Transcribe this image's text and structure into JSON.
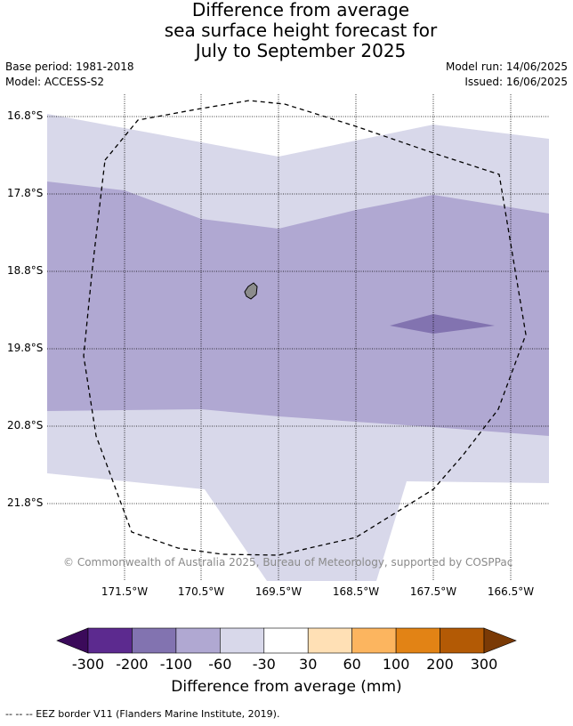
{
  "title": {
    "line1": "Difference from average",
    "line2": "sea surface height forecast for",
    "line3": "July to September 2025"
  },
  "meta": {
    "base_period": "Base period: 1981-2018",
    "model": "Model: ACCESS-S2",
    "model_run": "Model run: 14/06/2025",
    "issued": "Issued: 16/06/2025"
  },
  "map": {
    "lat_labels": [
      "16.8°S",
      "17.8°S",
      "18.8°S",
      "19.8°S",
      "20.8°S",
      "21.8°S"
    ],
    "lon_labels": [
      "171.5°W",
      "170.5°W",
      "169.5°W",
      "168.5°W",
      "167.5°W",
      "166.5°W"
    ],
    "island": "Niue",
    "border_style": "dashed",
    "copyright": "© Commonwealth of Australia 2025, Bureau of Meteorology, supported by COSPPac"
  },
  "colorbar": {
    "tick_labels": [
      "-300",
      "-200",
      "-100",
      "-60",
      "-30",
      "30",
      "60",
      "100",
      "200",
      "300"
    ],
    "colors": [
      "#3b0a5a",
      "#5c2a8f",
      "#8273b0",
      "#b0a8d2",
      "#d8d8ea",
      "#ffffff",
      "#ffe0b5",
      "#fcb55f",
      "#e28315",
      "#b35a05",
      "#7a3a06"
    ],
    "label": "Difference from average (mm)"
  },
  "footer": "-- -- -- EEZ border V11 (Flanders Marine Institute, 2019)."
}
